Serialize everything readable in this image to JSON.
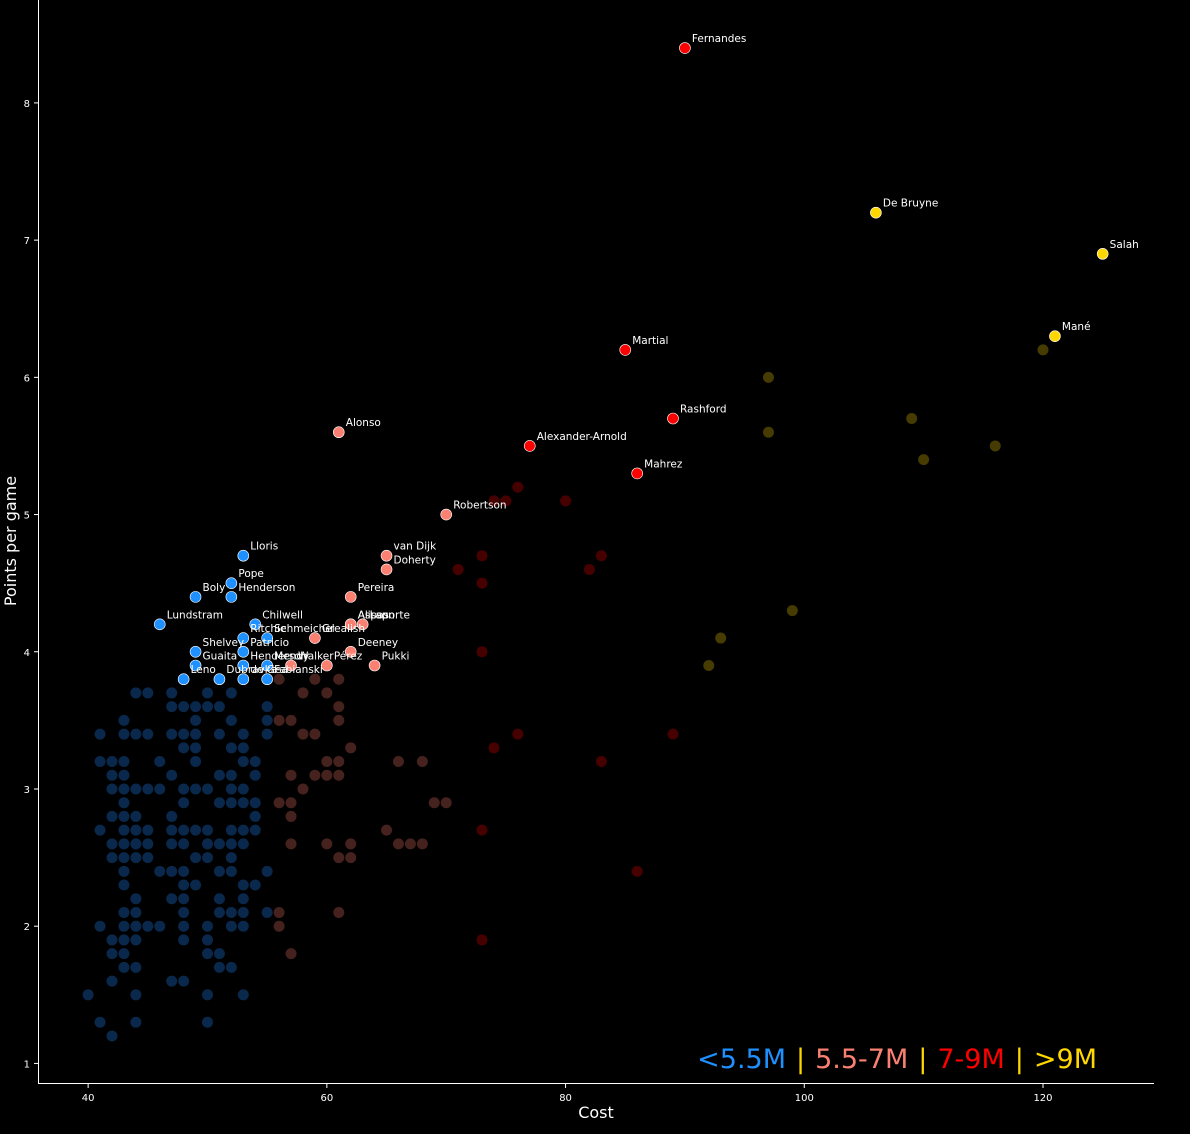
{
  "chart_data": {
    "type": "scatter",
    "xlabel": "Cost",
    "ylabel": "Points per game",
    "xlim": [
      35.8,
      129.3
    ],
    "ylim": [
      0.85,
      8.75
    ],
    "xticks": [
      "40",
      "60",
      "80",
      "100",
      "120"
    ],
    "yticks": [
      "1",
      "2",
      "3",
      "4",
      "5",
      "6",
      "7",
      "8"
    ],
    "grid": false,
    "legend_position": "bottom-right",
    "colors": {
      "under_5_5": "#1e90ff",
      "5_5_to_7": "#fa8072",
      "7_to_9": "#ff0000",
      "over_9": "#ffd700",
      "separator": "#ffd700"
    },
    "legend": {
      "items": [
        {
          "label": "<5.5M",
          "color": "#1e90ff"
        },
        {
          "label": "5.5-7M",
          "color": "#fa8072"
        },
        {
          "label": "7-9M",
          "color": "#ff0000"
        },
        {
          "label": ">9M",
          "color": "#ffd700"
        }
      ],
      "separator": "|"
    },
    "labeled_points": [
      {
        "name": "Fernandes",
        "x": 90,
        "y": 8.4,
        "group": "7_to_9"
      },
      {
        "name": "De Bruyne",
        "x": 106,
        "y": 7.2,
        "group": "over_9"
      },
      {
        "name": "Salah",
        "x": 125,
        "y": 6.9,
        "group": "over_9"
      },
      {
        "name": "Mané",
        "x": 121,
        "y": 6.3,
        "group": "over_9"
      },
      {
        "name": "Martial",
        "x": 85,
        "y": 6.2,
        "group": "7_to_9"
      },
      {
        "name": "Rashford",
        "x": 89,
        "y": 5.7,
        "group": "7_to_9"
      },
      {
        "name": "Alexander-Arnold",
        "x": 77,
        "y": 5.5,
        "group": "7_to_9"
      },
      {
        "name": "Mahrez",
        "x": 86,
        "y": 5.3,
        "group": "7_to_9"
      },
      {
        "name": "Alonso",
        "x": 61,
        "y": 5.6,
        "group": "5_5_to_7"
      },
      {
        "name": "Robertson",
        "x": 70,
        "y": 5.0,
        "group": "5_5_to_7"
      },
      {
        "name": "van Dijk",
        "x": 65,
        "y": 4.7,
        "group": "5_5_to_7"
      },
      {
        "name": "Doherty",
        "x": 65,
        "y": 4.6,
        "group": "5_5_to_7"
      },
      {
        "name": "Pereira",
        "x": 62,
        "y": 4.4,
        "group": "5_5_to_7"
      },
      {
        "name": "Alisson",
        "x": 62,
        "y": 4.2,
        "group": "5_5_to_7"
      },
      {
        "name": "Aspas",
        "x": 62,
        "y": 4.2,
        "group": "5_5_to_7"
      },
      {
        "name": "Laporte",
        "x": 63,
        "y": 4.2,
        "group": "5_5_to_7"
      },
      {
        "name": "Grealish",
        "x": 59,
        "y": 4.1,
        "group": "5_5_to_7"
      },
      {
        "name": "Deeney",
        "x": 62,
        "y": 4.0,
        "group": "5_5_to_7"
      },
      {
        "name": "Pukki",
        "x": 64,
        "y": 3.9,
        "group": "5_5_to_7"
      },
      {
        "name": "Pérez",
        "x": 60,
        "y": 3.9,
        "group": "5_5_to_7"
      },
      {
        "name": "Walker",
        "x": 57,
        "y": 3.9,
        "group": "5_5_to_7"
      },
      {
        "name": "Lloris",
        "x": 53,
        "y": 4.7,
        "group": "under_5_5"
      },
      {
        "name": "Pope",
        "x": 52,
        "y": 4.5,
        "group": "under_5_5"
      },
      {
        "name": "Boly",
        "x": 49,
        "y": 4.4,
        "group": "under_5_5"
      },
      {
        "name": "Henderson",
        "x": 52,
        "y": 4.4,
        "group": "under_5_5"
      },
      {
        "name": "Lundstram",
        "x": 46,
        "y": 4.2,
        "group": "under_5_5"
      },
      {
        "name": "Chilwell",
        "x": 54,
        "y": 4.2,
        "group": "under_5_5"
      },
      {
        "name": "Ritchie",
        "x": 53,
        "y": 4.1,
        "group": "under_5_5"
      },
      {
        "name": "Schmeichel",
        "x": 55,
        "y": 4.1,
        "group": "under_5_5"
      },
      {
        "name": "Shelvey",
        "x": 49,
        "y": 4.0,
        "group": "under_5_5"
      },
      {
        "name": "Patricio",
        "x": 53,
        "y": 4.0,
        "group": "under_5_5"
      },
      {
        "name": "Guaita",
        "x": 49,
        "y": 3.9,
        "group": "under_5_5"
      },
      {
        "name": "Henderson",
        "x": 53,
        "y": 3.9,
        "group": "under_5_5"
      },
      {
        "name": "Mendy",
        "x": 55,
        "y": 3.9,
        "group": "under_5_5"
      },
      {
        "name": "Leno",
        "x": 48,
        "y": 3.8,
        "group": "under_5_5"
      },
      {
        "name": "Dubravka",
        "x": 51,
        "y": 3.8,
        "group": "under_5_5"
      },
      {
        "name": "de Gea",
        "x": 53,
        "y": 3.8,
        "group": "under_5_5"
      },
      {
        "name": "Fabianski",
        "x": 55,
        "y": 3.8,
        "group": "under_5_5"
      }
    ],
    "other_points": {
      "under_5_5": [
        [
          44,
          3.7
        ],
        [
          45,
          3.7
        ],
        [
          47,
          3.7
        ],
        [
          50,
          3.7
        ],
        [
          52,
          3.7
        ],
        [
          47,
          3.6
        ],
        [
          48,
          3.6
        ],
        [
          49,
          3.6
        ],
        [
          50,
          3.6
        ],
        [
          51,
          3.6
        ],
        [
          55,
          3.6
        ],
        [
          43,
          3.5
        ],
        [
          49,
          3.5
        ],
        [
          52,
          3.5
        ],
        [
          55,
          3.5
        ],
        [
          41,
          3.4
        ],
        [
          43,
          3.4
        ],
        [
          44,
          3.4
        ],
        [
          45,
          3.4
        ],
        [
          47,
          3.4
        ],
        [
          48,
          3.4
        ],
        [
          49,
          3.4
        ],
        [
          51,
          3.4
        ],
        [
          53,
          3.4
        ],
        [
          55,
          3.4
        ],
        [
          48,
          3.3
        ],
        [
          49,
          3.3
        ],
        [
          52,
          3.3
        ],
        [
          53,
          3.3
        ],
        [
          41,
          3.2
        ],
        [
          42,
          3.2
        ],
        [
          43,
          3.2
        ],
        [
          46,
          3.2
        ],
        [
          49,
          3.2
        ],
        [
          53,
          3.2
        ],
        [
          54,
          3.2
        ],
        [
          42,
          3.1
        ],
        [
          43,
          3.1
        ],
        [
          47,
          3.1
        ],
        [
          51,
          3.1
        ],
        [
          52,
          3.1
        ],
        [
          54,
          3.1
        ],
        [
          42,
          3.0
        ],
        [
          43,
          3.0
        ],
        [
          44,
          3.0
        ],
        [
          45,
          3.0
        ],
        [
          46,
          3.0
        ],
        [
          48,
          3.0
        ],
        [
          49,
          3.0
        ],
        [
          50,
          3.0
        ],
        [
          52,
          3.0
        ],
        [
          53,
          3.0
        ],
        [
          43,
          2.9
        ],
        [
          48,
          2.9
        ],
        [
          51,
          2.9
        ],
        [
          52,
          2.9
        ],
        [
          53,
          2.9
        ],
        [
          54,
          2.9
        ],
        [
          42,
          2.8
        ],
        [
          43,
          2.8
        ],
        [
          44,
          2.8
        ],
        [
          47,
          2.8
        ],
        [
          54,
          2.8
        ],
        [
          41,
          2.7
        ],
        [
          43,
          2.7
        ],
        [
          44,
          2.7
        ],
        [
          45,
          2.7
        ],
        [
          47,
          2.7
        ],
        [
          48,
          2.7
        ],
        [
          49,
          2.7
        ],
        [
          50,
          2.7
        ],
        [
          52,
          2.7
        ],
        [
          53,
          2.7
        ],
        [
          54,
          2.7
        ],
        [
          42,
          2.6
        ],
        [
          43,
          2.6
        ],
        [
          44,
          2.6
        ],
        [
          45,
          2.6
        ],
        [
          47,
          2.6
        ],
        [
          48,
          2.6
        ],
        [
          50,
          2.6
        ],
        [
          51,
          2.6
        ],
        [
          52,
          2.6
        ],
        [
          53,
          2.6
        ],
        [
          42,
          2.5
        ],
        [
          43,
          2.5
        ],
        [
          44,
          2.5
        ],
        [
          45,
          2.5
        ],
        [
          49,
          2.5
        ],
        [
          50,
          2.5
        ],
        [
          52,
          2.5
        ],
        [
          43,
          2.4
        ],
        [
          46,
          2.4
        ],
        [
          47,
          2.4
        ],
        [
          48,
          2.4
        ],
        [
          51,
          2.4
        ],
        [
          52,
          2.4
        ],
        [
          55,
          2.4
        ],
        [
          43,
          2.3
        ],
        [
          48,
          2.3
        ],
        [
          49,
          2.3
        ],
        [
          53,
          2.3
        ],
        [
          54,
          2.3
        ],
        [
          44,
          2.2
        ],
        [
          47,
          2.2
        ],
        [
          48,
          2.2
        ],
        [
          51,
          2.2
        ],
        [
          53,
          2.2
        ],
        [
          43,
          2.1
        ],
        [
          44,
          2.1
        ],
        [
          48,
          2.1
        ],
        [
          51,
          2.1
        ],
        [
          52,
          2.1
        ],
        [
          53,
          2.1
        ],
        [
          55,
          2.1
        ],
        [
          41,
          2.0
        ],
        [
          43,
          2.0
        ],
        [
          44,
          2.0
        ],
        [
          45,
          2.0
        ],
        [
          46,
          2.0
        ],
        [
          48,
          2.0
        ],
        [
          50,
          2.0
        ],
        [
          52,
          2.0
        ],
        [
          53,
          2.0
        ],
        [
          42,
          1.9
        ],
        [
          43,
          1.9
        ],
        [
          44,
          1.9
        ],
        [
          48,
          1.9
        ],
        [
          50,
          1.9
        ],
        [
          42,
          1.8
        ],
        [
          43,
          1.8
        ],
        [
          50,
          1.8
        ],
        [
          51,
          1.8
        ],
        [
          43,
          1.7
        ],
        [
          44,
          1.7
        ],
        [
          51,
          1.7
        ],
        [
          52,
          1.7
        ],
        [
          42,
          1.6
        ],
        [
          47,
          1.6
        ],
        [
          48,
          1.6
        ],
        [
          40,
          1.5
        ],
        [
          44,
          1.5
        ],
        [
          50,
          1.5
        ],
        [
          53,
          1.5
        ],
        [
          41,
          1.3
        ],
        [
          44,
          1.3
        ],
        [
          50,
          1.3
        ],
        [
          42,
          1.2
        ]
      ],
      "5_5_to_7": [
        [
          56,
          3.8
        ],
        [
          59,
          3.8
        ],
        [
          61,
          3.8
        ],
        [
          58,
          3.7
        ],
        [
          60,
          3.7
        ],
        [
          61,
          3.6
        ],
        [
          56,
          3.5
        ],
        [
          57,
          3.5
        ],
        [
          61,
          3.5
        ],
        [
          58,
          3.4
        ],
        [
          59,
          3.4
        ],
        [
          62,
          3.3
        ],
        [
          60,
          3.2
        ],
        [
          61,
          3.2
        ],
        [
          66,
          3.2
        ],
        [
          68,
          3.2
        ],
        [
          57,
          3.1
        ],
        [
          59,
          3.1
        ],
        [
          60,
          3.1
        ],
        [
          61,
          3.1
        ],
        [
          58,
          3.0
        ],
        [
          56,
          2.9
        ],
        [
          57,
          2.9
        ],
        [
          69,
          2.9
        ],
        [
          70,
          2.9
        ],
        [
          57,
          2.8
        ],
        [
          65,
          2.7
        ],
        [
          57,
          2.6
        ],
        [
          60,
          2.6
        ],
        [
          62,
          2.6
        ],
        [
          66,
          2.6
        ],
        [
          67,
          2.6
        ],
        [
          68,
          2.6
        ],
        [
          61,
          2.5
        ],
        [
          62,
          2.5
        ],
        [
          56,
          2.1
        ],
        [
          61,
          2.1
        ],
        [
          56,
          2.0
        ],
        [
          57,
          1.8
        ]
      ],
      "7_to_9": [
        [
          76,
          5.2
        ],
        [
          74,
          5.1
        ],
        [
          75,
          5.1
        ],
        [
          80,
          5.1
        ],
        [
          73,
          4.7
        ],
        [
          83,
          4.7
        ],
        [
          71,
          4.6
        ],
        [
          82,
          4.6
        ],
        [
          73,
          4.5
        ],
        [
          73,
          4.0
        ],
        [
          76,
          3.4
        ],
        [
          89,
          3.4
        ],
        [
          74,
          3.3
        ],
        [
          83,
          3.2
        ],
        [
          73,
          2.7
        ],
        [
          86,
          2.4
        ],
        [
          73,
          1.9
        ]
      ],
      "over_9": [
        [
          120,
          6.2
        ],
        [
          97,
          6.0
        ],
        [
          109,
          5.7
        ],
        [
          97,
          5.6
        ],
        [
          116,
          5.5
        ],
        [
          110,
          5.4
        ],
        [
          99,
          4.3
        ],
        [
          93,
          4.1
        ],
        [
          92,
          3.9
        ]
      ]
    }
  }
}
